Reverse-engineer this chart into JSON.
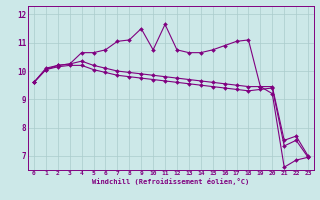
{
  "xlabel": "Windchill (Refroidissement éolien,°C)",
  "background_color": "#cce8e8",
  "line_color": "#800080",
  "grid_color": "#aacccc",
  "xlim": [
    -0.5,
    23.5
  ],
  "ylim": [
    6.5,
    12.3
  ],
  "yticks": [
    7,
    8,
    9,
    10,
    11,
    12
  ],
  "xticks": [
    0,
    1,
    2,
    3,
    4,
    5,
    6,
    7,
    8,
    9,
    10,
    11,
    12,
    13,
    14,
    15,
    16,
    17,
    18,
    19,
    20,
    21,
    22,
    23
  ],
  "series1_x": [
    0,
    1,
    2,
    3,
    4,
    5,
    6,
    7,
    8,
    9,
    10,
    11,
    12,
    13,
    14,
    15,
    16,
    17,
    18,
    19,
    20,
    21,
    22,
    23
  ],
  "series1_y": [
    9.6,
    10.1,
    10.2,
    10.25,
    10.65,
    10.65,
    10.75,
    11.05,
    11.1,
    11.5,
    10.75,
    11.65,
    10.75,
    10.65,
    10.65,
    10.75,
    10.9,
    11.05,
    11.1,
    9.45,
    9.2,
    6.6,
    6.85,
    6.95
  ],
  "series2_x": [
    0,
    1,
    2,
    3,
    4,
    5,
    6,
    7,
    8,
    9,
    10,
    11,
    12,
    13,
    14,
    15,
    16,
    17,
    18,
    19,
    20,
    21,
    22,
    23
  ],
  "series2_y": [
    9.6,
    10.05,
    10.15,
    10.2,
    10.2,
    10.05,
    9.95,
    9.85,
    9.8,
    9.75,
    9.7,
    9.65,
    9.6,
    9.55,
    9.5,
    9.45,
    9.4,
    9.35,
    9.3,
    9.35,
    9.4,
    7.35,
    7.55,
    6.95
  ],
  "series3_x": [
    0,
    1,
    2,
    3,
    4,
    5,
    6,
    7,
    8,
    9,
    10,
    11,
    12,
    13,
    14,
    15,
    16,
    17,
    18,
    19,
    20,
    21,
    22,
    23
  ],
  "series3_y": [
    9.6,
    10.05,
    10.2,
    10.25,
    10.35,
    10.2,
    10.1,
    10.0,
    9.95,
    9.9,
    9.85,
    9.8,
    9.75,
    9.7,
    9.65,
    9.6,
    9.55,
    9.5,
    9.45,
    9.45,
    9.45,
    7.55,
    7.7,
    7.0
  ]
}
